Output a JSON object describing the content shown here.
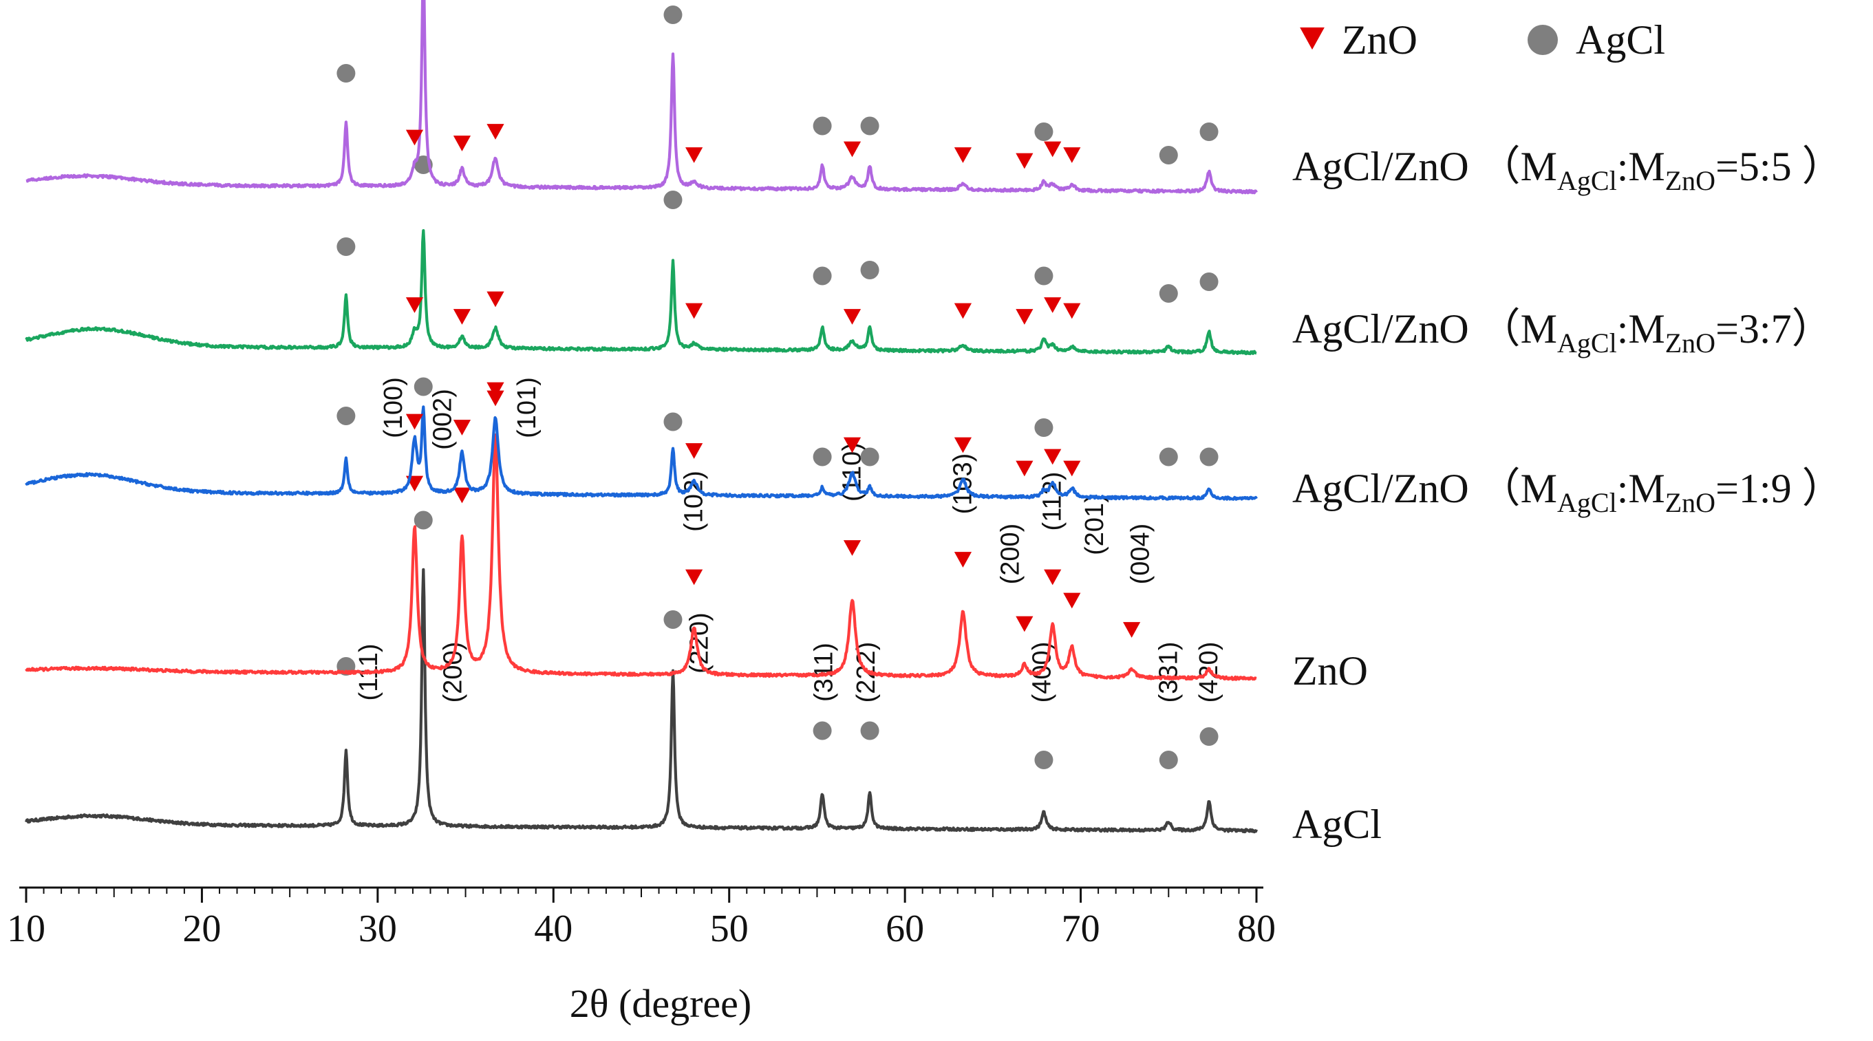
{
  "chart_data": {
    "type": "line",
    "title": "",
    "xlabel": "2θ (degree)",
    "ylabel": "",
    "xlim": [
      10,
      80
    ],
    "xticks": [
      10,
      20,
      30,
      40,
      50,
      60,
      70,
      80
    ],
    "grid": false,
    "legend_position": "top-right",
    "legend": [
      {
        "name": "ZnO",
        "marker": "triangle-down",
        "color": "#e00000"
      },
      {
        "name": "AgCl",
        "marker": "circle",
        "color": "#7f7f7f"
      }
    ],
    "series": [
      {
        "id": "agcl",
        "name": "AgCl",
        "label": "AgCl",
        "color": "#404040",
        "baseline_slope": -0.016,
        "hump": {
          "center": 14,
          "width": 4,
          "height": 1.5
        },
        "peaks": [
          {
            "pos": 28.2,
            "height": 13,
            "fwhm": 0.22
          },
          {
            "pos": 32.6,
            "height": 44,
            "fwhm": 0.22
          },
          {
            "pos": 46.8,
            "height": 27,
            "fwhm": 0.22
          },
          {
            "pos": 55.3,
            "height": 6,
            "fwhm": 0.25
          },
          {
            "pos": 58.0,
            "height": 6,
            "fwhm": 0.25
          },
          {
            "pos": 67.9,
            "height": 3,
            "fwhm": 0.3
          },
          {
            "pos": 75.0,
            "height": 1.5,
            "fwhm": 0.3
          },
          {
            "pos": 77.3,
            "height": 5,
            "fwhm": 0.28
          }
        ],
        "markers": [
          {
            "pos": 28.2,
            "type": "AgCl",
            "level": 27
          },
          {
            "pos": 32.6,
            "type": "AgCl",
            "level": 52
          },
          {
            "pos": 46.8,
            "type": "AgCl",
            "level": 35
          },
          {
            "pos": 55.3,
            "type": "AgCl",
            "level": 16
          },
          {
            "pos": 58.0,
            "type": "AgCl",
            "level": 16
          },
          {
            "pos": 67.9,
            "type": "AgCl",
            "level": 11
          },
          {
            "pos": 75.0,
            "type": "AgCl",
            "level": 11
          },
          {
            "pos": 77.3,
            "type": "AgCl",
            "level": 15
          }
        ],
        "annotations": [
          {
            "text": "(111)",
            "pos": 29.5,
            "level": 26
          },
          {
            "text": "(200)",
            "pos": 34.3,
            "level": 26
          },
          {
            "text": "(220)",
            "pos": 48.3,
            "level": 31
          },
          {
            "text": "(311)",
            "pos": 55.4,
            "level": 26
          },
          {
            "text": "(222)",
            "pos": 57.8,
            "level": 26
          },
          {
            "text": "(400)",
            "pos": 67.8,
            "level": 26
          },
          {
            "text": "(331)",
            "pos": 75.0,
            "level": 26
          },
          {
            "text": "(420)",
            "pos": 77.3,
            "level": 26
          }
        ]
      },
      {
        "id": "zno",
        "name": "ZnO",
        "label": "ZnO",
        "color": "#ff3b3b",
        "baseline_slope": -0.019,
        "hump": {
          "center": 14,
          "width": 4,
          "height": 0.5
        },
        "peaks": [
          {
            "pos": 32.1,
            "height": 25,
            "fwhm": 0.35
          },
          {
            "pos": 34.8,
            "height": 23,
            "fwhm": 0.35
          },
          {
            "pos": 36.7,
            "height": 41,
            "fwhm": 0.4
          },
          {
            "pos": 48.0,
            "height": 8,
            "fwhm": 0.45
          },
          {
            "pos": 57.0,
            "height": 13,
            "fwhm": 0.45
          },
          {
            "pos": 63.3,
            "height": 11,
            "fwhm": 0.45
          },
          {
            "pos": 66.8,
            "height": 2,
            "fwhm": 0.4
          },
          {
            "pos": 68.4,
            "height": 9,
            "fwhm": 0.4
          },
          {
            "pos": 69.5,
            "height": 5,
            "fwhm": 0.4
          },
          {
            "pos": 72.9,
            "height": 1.5,
            "fwhm": 0.4
          },
          {
            "pos": 77.3,
            "height": 1.5,
            "fwhm": 0.4
          }
        ],
        "markers": [
          {
            "pos": 32.1,
            "type": "ZnO",
            "level": 32
          },
          {
            "pos": 34.8,
            "type": "ZnO",
            "level": 30
          },
          {
            "pos": 36.7,
            "type": "ZnO",
            "level": 48
          },
          {
            "pos": 48.0,
            "type": "ZnO",
            "level": 16
          },
          {
            "pos": 57.0,
            "type": "ZnO",
            "level": 21
          },
          {
            "pos": 63.3,
            "type": "ZnO",
            "level": 19
          },
          {
            "pos": 66.8,
            "type": "ZnO",
            "level": 8
          },
          {
            "pos": 68.4,
            "type": "ZnO",
            "level": 16
          },
          {
            "pos": 69.5,
            "type": "ZnO",
            "level": 12
          },
          {
            "pos": 72.9,
            "type": "ZnO",
            "level": 7
          }
        ],
        "annotations": [
          {
            "text": "(100)",
            "pos": 30.9,
            "level": 45
          },
          {
            "text": "(002)",
            "pos": 33.7,
            "level": 43
          },
          {
            "text": "(101)",
            "pos": 38.5,
            "level": 45
          },
          {
            "text": "(102)",
            "pos": 48.0,
            "level": 29
          },
          {
            "text": "(110)",
            "pos": 57.0,
            "level": 34
          },
          {
            "text": "(103)",
            "pos": 63.3,
            "level": 32
          },
          {
            "text": "(200)",
            "pos": 66.0,
            "level": 20
          },
          {
            "text": "(112)",
            "pos": 68.4,
            "level": 29
          },
          {
            "text": "(201)",
            "pos": 70.8,
            "level": 25
          },
          {
            "text": "(004)",
            "pos": 73.4,
            "level": 20
          }
        ]
      },
      {
        "id": "ratio19",
        "name": "AgCl/ZnO (MAgCl:MZnO=1:9 )",
        "label_main": "AgCl/ZnO",
        "label_paren_open": "（M",
        "label_sub1": "AgCl",
        "label_colon": ":M",
        "label_sub2": "ZnO",
        "label_ratio": "=1:9 ）",
        "color": "#1a66d9",
        "baseline_slope": -0.016,
        "hump": {
          "center": 13.5,
          "width": 4,
          "height": 3
        },
        "peaks": [
          {
            "pos": 28.2,
            "height": 6,
            "fwhm": 0.22
          },
          {
            "pos": 32.1,
            "height": 9,
            "fwhm": 0.35
          },
          {
            "pos": 32.6,
            "height": 14,
            "fwhm": 0.22
          },
          {
            "pos": 34.8,
            "height": 7,
            "fwhm": 0.35
          },
          {
            "pos": 36.7,
            "height": 13,
            "fwhm": 0.4
          },
          {
            "pos": 46.8,
            "height": 8,
            "fwhm": 0.22
          },
          {
            "pos": 48.0,
            "height": 2.5,
            "fwhm": 0.45
          },
          {
            "pos": 55.3,
            "height": 1.5,
            "fwhm": 0.25
          },
          {
            "pos": 57.0,
            "height": 4,
            "fwhm": 0.45
          },
          {
            "pos": 58.0,
            "height": 1.5,
            "fwhm": 0.25
          },
          {
            "pos": 63.3,
            "height": 3,
            "fwhm": 0.45
          },
          {
            "pos": 67.9,
            "height": 1,
            "fwhm": 0.3
          },
          {
            "pos": 68.4,
            "height": 2.5,
            "fwhm": 0.4
          },
          {
            "pos": 69.5,
            "height": 1.5,
            "fwhm": 0.4
          },
          {
            "pos": 77.3,
            "height": 1.5,
            "fwhm": 0.28
          }
        ],
        "markers": [
          {
            "pos": 28.2,
            "type": "AgCl",
            "level": 13
          },
          {
            "pos": 32.6,
            "type": "AgCl",
            "level": 18
          },
          {
            "pos": 32.1,
            "type": "ZnO",
            "level": 12
          },
          {
            "pos": 34.8,
            "type": "ZnO",
            "level": 11
          },
          {
            "pos": 36.7,
            "type": "ZnO",
            "level": 16
          },
          {
            "pos": 46.8,
            "type": "AgCl",
            "level": 12
          },
          {
            "pos": 48.0,
            "type": "ZnO",
            "level": 7
          },
          {
            "pos": 55.3,
            "type": "AgCl",
            "level": 6
          },
          {
            "pos": 57.0,
            "type": "ZnO",
            "level": 8
          },
          {
            "pos": 58.0,
            "type": "AgCl",
            "level": 6
          },
          {
            "pos": 63.3,
            "type": "ZnO",
            "level": 8
          },
          {
            "pos": 66.8,
            "type": "ZnO",
            "level": 4
          },
          {
            "pos": 67.9,
            "type": "AgCl",
            "level": 11
          },
          {
            "pos": 68.4,
            "type": "ZnO",
            "level": 6
          },
          {
            "pos": 69.5,
            "type": "ZnO",
            "level": 4
          },
          {
            "pos": 75.0,
            "type": "AgCl",
            "level": 6
          },
          {
            "pos": 77.3,
            "type": "AgCl",
            "level": 6
          }
        ],
        "annotations": []
      },
      {
        "id": "ratio37",
        "name": "AgCl/ZnO (MAgCl:MZnO=3:7)",
        "label_main": "AgCl/ZnO",
        "label_paren_open": "（M",
        "label_sub1": "AgCl",
        "label_colon": ":M",
        "label_sub2": "ZnO",
        "label_ratio": "=3:7）",
        "color": "#1aa65e",
        "baseline_slope": -0.016,
        "hump": {
          "center": 14,
          "width": 4,
          "height": 3
        },
        "peaks": [
          {
            "pos": 28.2,
            "height": 9,
            "fwhm": 0.22
          },
          {
            "pos": 32.1,
            "height": 2.5,
            "fwhm": 0.35
          },
          {
            "pos": 32.6,
            "height": 20,
            "fwhm": 0.22
          },
          {
            "pos": 34.8,
            "height": 2,
            "fwhm": 0.35
          },
          {
            "pos": 36.7,
            "height": 3.5,
            "fwhm": 0.4
          },
          {
            "pos": 46.8,
            "height": 15,
            "fwhm": 0.22
          },
          {
            "pos": 48.0,
            "height": 1,
            "fwhm": 0.45
          },
          {
            "pos": 55.3,
            "height": 4,
            "fwhm": 0.25
          },
          {
            "pos": 57.0,
            "height": 1.5,
            "fwhm": 0.45
          },
          {
            "pos": 58.0,
            "height": 4,
            "fwhm": 0.25
          },
          {
            "pos": 63.3,
            "height": 1,
            "fwhm": 0.45
          },
          {
            "pos": 67.9,
            "height": 2,
            "fwhm": 0.3
          },
          {
            "pos": 68.4,
            "height": 1,
            "fwhm": 0.4
          },
          {
            "pos": 69.5,
            "height": 0.8,
            "fwhm": 0.4
          },
          {
            "pos": 75.0,
            "height": 1,
            "fwhm": 0.3
          },
          {
            "pos": 77.3,
            "height": 3.5,
            "fwhm": 0.28
          }
        ],
        "markers": [
          {
            "pos": 28.2,
            "type": "AgCl",
            "level": 17
          },
          {
            "pos": 32.6,
            "type": "AgCl",
            "level": 31
          },
          {
            "pos": 32.1,
            "type": "ZnO",
            "level": 7
          },
          {
            "pos": 34.8,
            "type": "ZnO",
            "level": 5
          },
          {
            "pos": 36.7,
            "type": "ZnO",
            "level": 8
          },
          {
            "pos": 46.8,
            "type": "AgCl",
            "level": 25
          },
          {
            "pos": 48.0,
            "type": "ZnO",
            "level": 6
          },
          {
            "pos": 55.3,
            "type": "AgCl",
            "level": 12
          },
          {
            "pos": 57.0,
            "type": "ZnO",
            "level": 5
          },
          {
            "pos": 58.0,
            "type": "AgCl",
            "level": 13
          },
          {
            "pos": 63.3,
            "type": "ZnO",
            "level": 6
          },
          {
            "pos": 66.8,
            "type": "ZnO",
            "level": 5
          },
          {
            "pos": 67.9,
            "type": "AgCl",
            "level": 12
          },
          {
            "pos": 68.4,
            "type": "ZnO",
            "level": 7
          },
          {
            "pos": 69.5,
            "type": "ZnO",
            "level": 6
          },
          {
            "pos": 75.0,
            "type": "AgCl",
            "level": 9
          },
          {
            "pos": 77.3,
            "type": "AgCl",
            "level": 11
          }
        ],
        "annotations": []
      },
      {
        "id": "ratio55",
        "name": "AgCl/ZnO (MAgCl:MZnO=5:5 )",
        "label_main": "AgCl/ZnO",
        "label_paren_open": "（M",
        "label_sub1": "AgCl",
        "label_colon": ":M",
        "label_sub2": "ZnO",
        "label_ratio": "=5:5 ）",
        "color": "#b066e0",
        "baseline_slope": -0.018,
        "hump": {
          "center": 13.5,
          "width": 4,
          "height": 1.5
        },
        "peaks": [
          {
            "pos": 28.2,
            "height": 11,
            "fwhm": 0.22
          },
          {
            "pos": 32.1,
            "height": 2.5,
            "fwhm": 0.35
          },
          {
            "pos": 32.6,
            "height": 37,
            "fwhm": 0.22
          },
          {
            "pos": 34.8,
            "height": 3,
            "fwhm": 0.35
          },
          {
            "pos": 36.7,
            "height": 5,
            "fwhm": 0.4
          },
          {
            "pos": 46.8,
            "height": 23,
            "fwhm": 0.22
          },
          {
            "pos": 48.0,
            "height": 1,
            "fwhm": 0.45
          },
          {
            "pos": 55.3,
            "height": 4,
            "fwhm": 0.25
          },
          {
            "pos": 57.0,
            "height": 2,
            "fwhm": 0.45
          },
          {
            "pos": 58.0,
            "height": 4,
            "fwhm": 0.25
          },
          {
            "pos": 63.3,
            "height": 1,
            "fwhm": 0.45
          },
          {
            "pos": 67.9,
            "height": 1.5,
            "fwhm": 0.3
          },
          {
            "pos": 68.4,
            "height": 1,
            "fwhm": 0.4
          },
          {
            "pos": 69.5,
            "height": 1,
            "fwhm": 0.4
          },
          {
            "pos": 77.3,
            "height": 3.5,
            "fwhm": 0.28
          }
        ],
        "markers": [
          {
            "pos": 28.2,
            "type": "AgCl",
            "level": 19
          },
          {
            "pos": 32.6,
            "type": "AgCl",
            "level": 44
          },
          {
            "pos": 32.1,
            "type": "ZnO",
            "level": 8
          },
          {
            "pos": 34.8,
            "type": "ZnO",
            "level": 7
          },
          {
            "pos": 36.7,
            "type": "ZnO",
            "level": 9
          },
          {
            "pos": 46.8,
            "type": "AgCl",
            "level": 29
          },
          {
            "pos": 48.0,
            "type": "ZnO",
            "level": 5
          },
          {
            "pos": 55.3,
            "type": "AgCl",
            "level": 10
          },
          {
            "pos": 57.0,
            "type": "ZnO",
            "level": 6
          },
          {
            "pos": 58.0,
            "type": "AgCl",
            "level": 10
          },
          {
            "pos": 63.3,
            "type": "ZnO",
            "level": 5
          },
          {
            "pos": 66.8,
            "type": "ZnO",
            "level": 4
          },
          {
            "pos": 67.9,
            "type": "AgCl",
            "level": 9
          },
          {
            "pos": 68.4,
            "type": "ZnO",
            "level": 6
          },
          {
            "pos": 69.5,
            "type": "ZnO",
            "level": 5
          },
          {
            "pos": 75.0,
            "type": "AgCl",
            "level": 5
          },
          {
            "pos": 77.3,
            "type": "AgCl",
            "level": 9
          }
        ],
        "annotations": []
      }
    ]
  }
}
